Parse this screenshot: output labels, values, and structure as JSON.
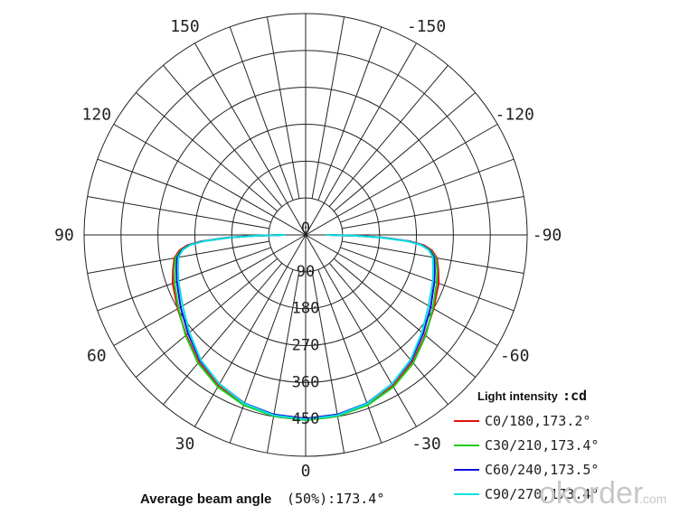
{
  "chart_data": {
    "type": "polar",
    "radial_ticks": [
      "0",
      "90",
      "180",
      "270",
      "360",
      "450"
    ],
    "angle_labels": [
      {
        "text": "-150",
        "angle": -150
      },
      {
        "text": "150",
        "angle": 150
      },
      {
        "text": "-120",
        "angle": -120
      },
      {
        "text": "120",
        "angle": 120
      },
      {
        "text": "-90",
        "angle": -90
      },
      {
        "text": "90",
        "angle": 90
      },
      {
        "text": "-60",
        "angle": -60
      },
      {
        "text": "60",
        "angle": 60
      },
      {
        "text": "-30",
        "angle": -30
      },
      {
        "text": "30",
        "angle": 30
      },
      {
        "text": "0",
        "angle": 0
      }
    ],
    "legend_title": "Light intensity",
    "legend_unit": ":cd",
    "series": [
      {
        "name": "C0/180,173.2°",
        "color": "#e01010",
        "points": [
          [
            0,
            450
          ],
          [
            10,
            447
          ],
          [
            20,
            440
          ],
          [
            30,
            425
          ],
          [
            40,
            405
          ],
          [
            50,
            380
          ],
          [
            60,
            360
          ],
          [
            70,
            345
          ],
          [
            75,
            335
          ],
          [
            80,
            325
          ],
          [
            83,
            310
          ],
          [
            85,
            290
          ],
          [
            86.5,
            255
          ],
          [
            88,
            190
          ],
          [
            89,
            130
          ],
          [
            90,
            60
          ]
        ]
      },
      {
        "name": "C30/210,173.4°",
        "color": "#20cc20",
        "points": [
          [
            0,
            452
          ],
          [
            10,
            449
          ],
          [
            20,
            442
          ],
          [
            30,
            428
          ],
          [
            40,
            408
          ],
          [
            50,
            382
          ],
          [
            60,
            358
          ],
          [
            70,
            340
          ],
          [
            75,
            332
          ],
          [
            80,
            322
          ],
          [
            83,
            306
          ],
          [
            85,
            286
          ],
          [
            86.5,
            250
          ],
          [
            88,
            185
          ],
          [
            89,
            125
          ],
          [
            90,
            55
          ]
        ]
      },
      {
        "name": "C60/240,173.5°",
        "color": "#1010dd",
        "points": [
          [
            0,
            448
          ],
          [
            10,
            445
          ],
          [
            20,
            437
          ],
          [
            30,
            420
          ],
          [
            40,
            400
          ],
          [
            50,
            374
          ],
          [
            60,
            352
          ],
          [
            70,
            334
          ],
          [
            75,
            326
          ],
          [
            80,
            318
          ],
          [
            83,
            304
          ],
          [
            85,
            284
          ],
          [
            86.5,
            250
          ],
          [
            88,
            185
          ],
          [
            89,
            125
          ],
          [
            90,
            55
          ]
        ]
      },
      {
        "name": "C90/270,173.4°",
        "color": "#10e0e0",
        "points": [
          [
            0,
            450
          ],
          [
            10,
            447
          ],
          [
            20,
            438
          ],
          [
            30,
            420
          ],
          [
            40,
            398
          ],
          [
            50,
            370
          ],
          [
            60,
            346
          ],
          [
            70,
            330
          ],
          [
            75,
            322
          ],
          [
            80,
            315
          ],
          [
            83,
            302
          ],
          [
            85,
            282
          ],
          [
            86.5,
            248
          ],
          [
            88,
            183
          ],
          [
            89,
            122
          ],
          [
            90,
            50
          ]
        ]
      }
    ],
    "footer_label": "Average beam angle",
    "footer_value": "(50%):173.4°",
    "watermark": "okorder",
    "watermark_suffix": ".com",
    "rmax": 540
  }
}
